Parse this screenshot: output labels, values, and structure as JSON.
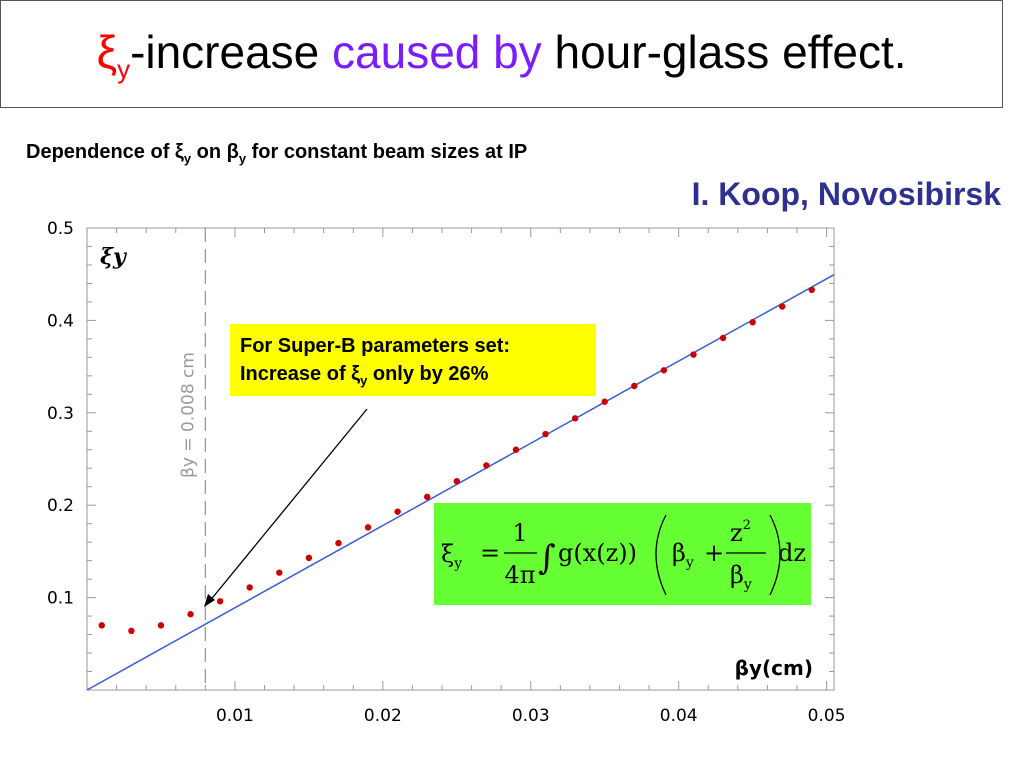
{
  "slide": {
    "title": {
      "xi": "ξ",
      "xi_sub": "y",
      "part1": "-increase ",
      "highlight": "caused by",
      "part2": " hour-glass effect."
    },
    "subtitle": {
      "p1": "Dependence of ξ",
      "s1": "y",
      "p2": " on β",
      "s2": "y",
      "p3": " for constant beam sizes at IP"
    },
    "author": "I. Koop, Novosibirsk",
    "note": {
      "line1": "For Super-B parameters set:",
      "line2_a": "Increase of ξ",
      "line2_sub": "y",
      "line2_b": " only by 26%"
    },
    "formula": {
      "lhs": "ξ",
      "lhs_sub": "y",
      "eq": "=",
      "num": "1",
      "den": "4π",
      "integral": "∫",
      "gx": "g(x(z))",
      "beta": "β",
      "beta_sub": "y",
      "plus": "+",
      "z2": "z",
      "z2_sup": "2",
      "den_beta": "β",
      "den_beta_sub": "y",
      "dz": "dz"
    }
  },
  "chart_data": {
    "type": "scatter",
    "x_label": "βy(cm)",
    "y_label": "ξy",
    "xlim": [
      0.0,
      0.0505
    ],
    "ylim": [
      0.0,
      0.5
    ],
    "x_ticks": [
      0.01,
      0.02,
      0.03,
      0.04,
      0.05
    ],
    "x_tick_labels": [
      "0.01",
      "0.02",
      "0.03",
      "0.04",
      "0.05"
    ],
    "y_ticks": [
      0.1,
      0.2,
      0.3,
      0.4,
      0.5
    ],
    "y_tick_labels": [
      "0.1",
      "0.2",
      "0.3",
      "0.4",
      "0.5"
    ],
    "vline": {
      "x": 0.008,
      "label": "βy = 0.008 cm"
    },
    "line": {
      "x": [
        0.0,
        0.05
      ],
      "y": [
        0.0,
        0.445
      ],
      "color": "#3b5bdb"
    },
    "points": {
      "color": "#cc0000",
      "x": [
        0.001,
        0.003,
        0.005,
        0.007,
        0.009,
        0.011,
        0.013,
        0.015,
        0.017,
        0.019,
        0.021,
        0.023,
        0.025,
        0.027,
        0.029,
        0.031,
        0.033,
        0.035,
        0.037,
        0.039,
        0.041,
        0.043,
        0.045,
        0.047,
        0.049
      ],
      "y": [
        0.07,
        0.064,
        0.07,
        0.082,
        0.096,
        0.111,
        0.127,
        0.143,
        0.159,
        0.176,
        0.193,
        0.209,
        0.226,
        0.243,
        0.26,
        0.277,
        0.294,
        0.312,
        0.329,
        0.346,
        0.363,
        0.381,
        0.398,
        0.415,
        0.433
      ]
    }
  }
}
